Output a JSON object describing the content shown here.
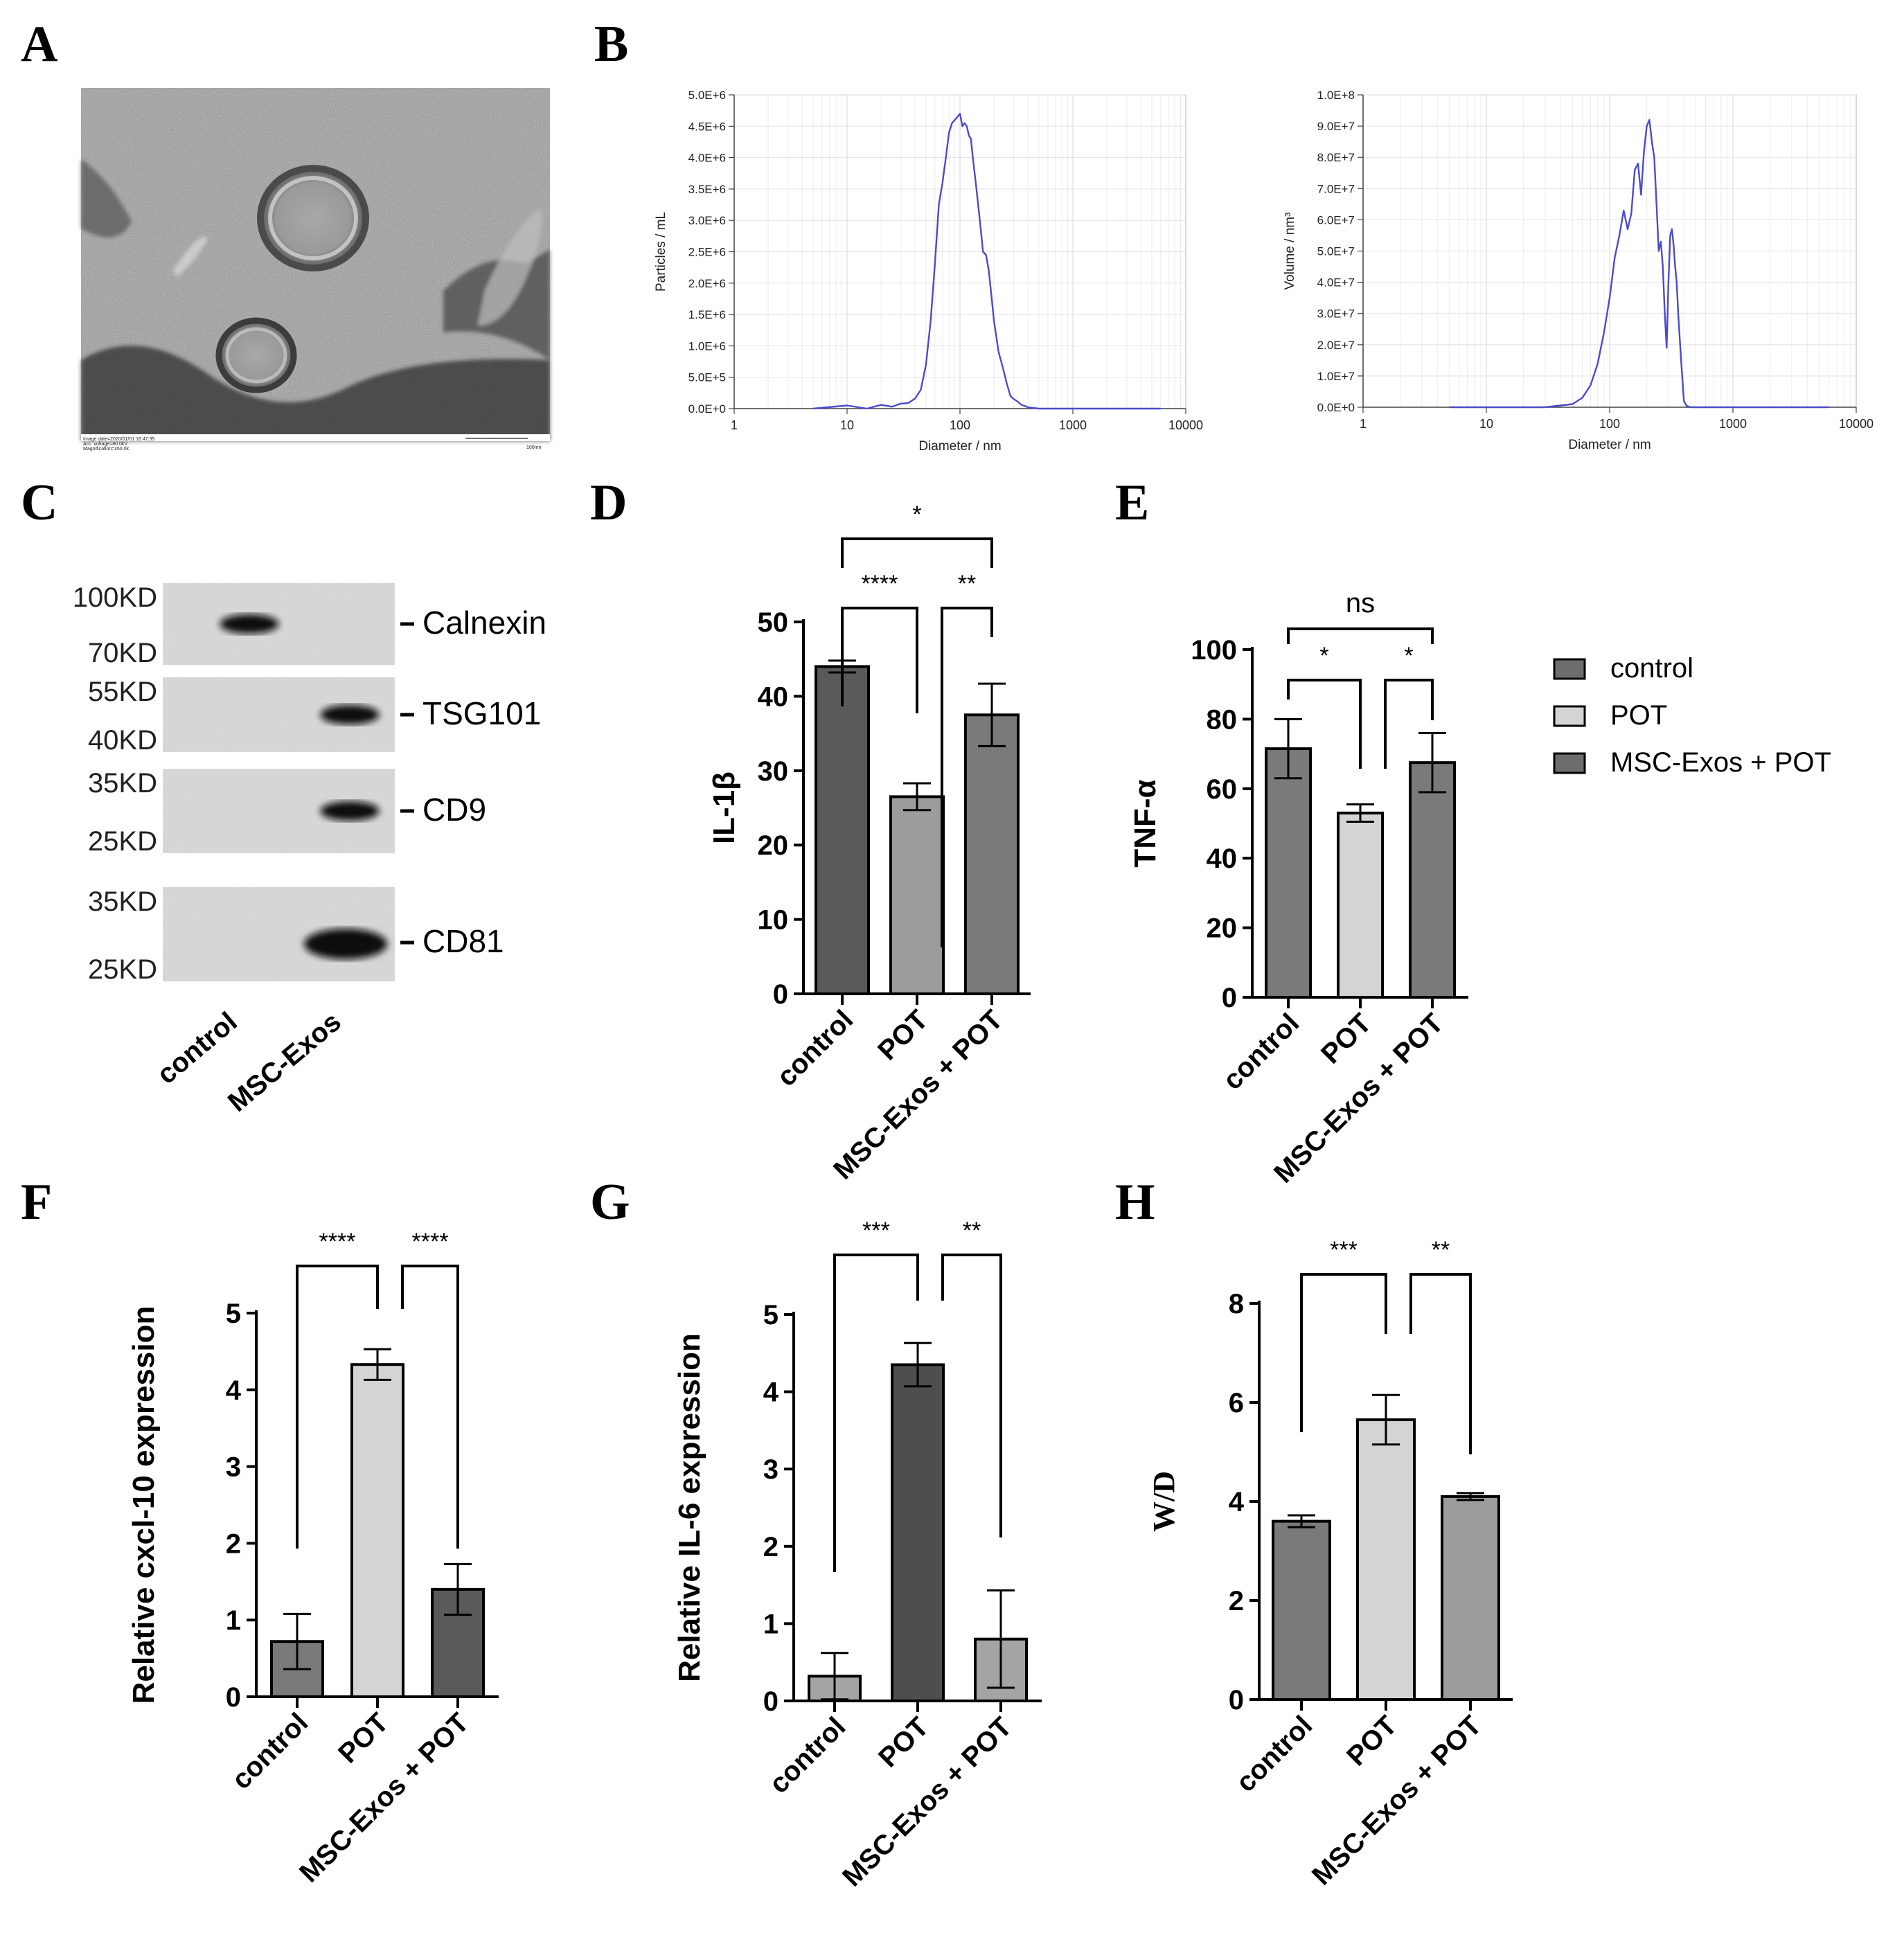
{
  "panels": {
    "A": {
      "letter": "A",
      "tem_caption_lines": [
        "Image date=2020/01/01 16:47:35",
        "Acc. voltage=80.0kV",
        "Magnification=x50.0k"
      ],
      "scale_label": "100nm"
    },
    "B": {
      "letter": "B"
    },
    "C": {
      "letter": "C",
      "blots": [
        {
          "protein": "Calnexin",
          "marker_top": "100KD",
          "marker_bottom": "70KD",
          "band_lane": 0
        },
        {
          "protein": "TSG101",
          "marker_top": "55KD",
          "marker_bottom": "40KD",
          "band_lane": 1
        },
        {
          "protein": "CD9",
          "marker_top": "35KD",
          "marker_bottom": "25KD",
          "band_lane": 1
        },
        {
          "protein": "CD81",
          "marker_top": "35KD",
          "marker_bottom": "25KD",
          "band_lane": 1
        }
      ],
      "lanes": [
        "control",
        "MSC-Exos"
      ]
    },
    "D": {
      "letter": "D"
    },
    "E": {
      "letter": "E"
    },
    "F": {
      "letter": "F"
    },
    "G": {
      "letter": "G"
    },
    "H": {
      "letter": "H"
    }
  },
  "legend": {
    "entries": [
      {
        "label": "control",
        "color": "#6d6d6d"
      },
      {
        "label": "POT",
        "color": "#d4d4d4"
      },
      {
        "label": "MSC-Exos + POT",
        "color": "#6d6d6d"
      }
    ]
  },
  "chart_data": [
    {
      "id": "B-particles",
      "type": "line",
      "xlabel": "Diameter / nm",
      "ylabel": "Particles / mL",
      "xscale": "log",
      "xlim": [
        1,
        10000
      ],
      "ylim": [
        0,
        5000000
      ],
      "x_ticks": [
        "1",
        "10",
        "100",
        "1000",
        "10000"
      ],
      "y_ticks": [
        "0.0E+0",
        "5.0E+5",
        "1.0E+6",
        "1.5E+6",
        "2.0E+6",
        "2.5E+6",
        "3.0E+6",
        "3.5E+6",
        "4.0E+6",
        "4.5E+6",
        "5.0E+6"
      ],
      "color": "#4b4bcc",
      "grid": true,
      "x": [
        5,
        10,
        15,
        20,
        25,
        30,
        35,
        40,
        45,
        50,
        55,
        60,
        65,
        70,
        75,
        80,
        85,
        90,
        95,
        100,
        105,
        110,
        115,
        120,
        125,
        130,
        140,
        150,
        160,
        170,
        180,
        190,
        200,
        220,
        240,
        260,
        280,
        300,
        320,
        350,
        380,
        400,
        450,
        500,
        1000,
        6000
      ],
      "y": [
        0,
        50000,
        0,
        60000,
        30000,
        80000,
        90000,
        160000,
        300000,
        700000,
        1400000,
        2300000,
        3250000,
        3600000,
        4000000,
        4400000,
        4550000,
        4600000,
        4650000,
        4700000,
        4500000,
        4550000,
        4500000,
        4350000,
        4300000,
        4000000,
        3500000,
        3000000,
        2500000,
        2450000,
        2200000,
        1800000,
        1400000,
        900000,
        650000,
        400000,
        200000,
        150000,
        120000,
        60000,
        40000,
        20000,
        10000,
        0,
        0,
        0
      ]
    },
    {
      "id": "B-volume",
      "type": "line",
      "xlabel": "Diameter / nm",
      "ylabel": "Volume / nm³",
      "xscale": "log",
      "xlim": [
        1,
        10000
      ],
      "ylim": [
        0,
        100000000
      ],
      "x_ticks": [
        "1",
        "10",
        "100",
        "1000",
        "10000"
      ],
      "y_ticks": [
        "0.0E+0",
        "1.0E+7",
        "2.0E+7",
        "3.0E+7",
        "4.0E+7",
        "5.0E+7",
        "6.0E+7",
        "7.0E+7",
        "8.0E+7",
        "9.0E+7",
        "1.0E+8"
      ],
      "color": "#4b4bcc",
      "grid": true,
      "x": [
        5,
        30,
        50,
        60,
        70,
        80,
        90,
        100,
        110,
        120,
        130,
        140,
        150,
        160,
        170,
        180,
        190,
        200,
        210,
        220,
        230,
        240,
        250,
        260,
        270,
        280,
        290,
        300,
        310,
        320,
        330,
        340,
        350,
        360,
        380,
        400,
        420,
        450,
        500,
        1000,
        6000
      ],
      "y": [
        0,
        0,
        1000000,
        3000000,
        7000000,
        14000000,
        24000000,
        35000000,
        48000000,
        55000000,
        63000000,
        57000000,
        62000000,
        76000000,
        78000000,
        68000000,
        82000000,
        90000000,
        92000000,
        85000000,
        80000000,
        65000000,
        50000000,
        53000000,
        45000000,
        30000000,
        19000000,
        40000000,
        55000000,
        57000000,
        52000000,
        45000000,
        40000000,
        30000000,
        15000000,
        2000000,
        500000,
        0,
        0,
        0,
        0
      ]
    },
    {
      "id": "D",
      "type": "bar",
      "categories": [
        "control",
        "POT",
        "MSC-Exos + POT"
      ],
      "values": [
        44,
        26.5,
        37.5
      ],
      "errors": [
        0.8,
        1.8,
        4.2
      ],
      "colors": [
        "#5a5a5a",
        "#9c9c9e",
        "#7a7a7a"
      ],
      "ylabel": "IL-1β",
      "ylim": [
        0,
        50
      ],
      "y_ticks": [
        "0",
        "10",
        "20",
        "30",
        "40",
        "50"
      ],
      "y_tick_values": [
        0,
        10,
        20,
        30,
        40,
        50
      ],
      "significance": [
        {
          "from": 0,
          "to": 1,
          "label": "****",
          "level": 1
        },
        {
          "from": 1,
          "to": 2,
          "label": "**",
          "level": 1
        },
        {
          "from": 0,
          "to": 2,
          "label": "*",
          "level": 2
        }
      ]
    },
    {
      "id": "E",
      "type": "bar",
      "categories": [
        "control",
        "POT",
        "MSC-Exos + POT"
      ],
      "values": [
        71.5,
        53,
        67.5
      ],
      "errors": [
        8.5,
        2.5,
        8.5
      ],
      "colors": [
        "#7a7a7a",
        "#d4d4d4",
        "#7a7a7a"
      ],
      "ylabel": "TNF-α",
      "ylim": [
        0,
        100
      ],
      "y_ticks": [
        "0",
        "20",
        "40",
        "60",
        "80",
        "100"
      ],
      "y_tick_values": [
        0,
        20,
        40,
        60,
        80,
        100
      ],
      "significance": [
        {
          "from": 0,
          "to": 1,
          "label": "*",
          "level": 1
        },
        {
          "from": 1,
          "to": 2,
          "label": "*",
          "level": 1
        },
        {
          "from": 0,
          "to": 2,
          "label": "ns",
          "level": 2
        }
      ]
    },
    {
      "id": "F",
      "type": "bar",
      "categories": [
        "control",
        "POT",
        "MSC-Exos + POT"
      ],
      "values": [
        0.72,
        4.33,
        1.4
      ],
      "errors": [
        0.36,
        0.2,
        0.33
      ],
      "colors": [
        "#7a7a7a",
        "#d4d4d4",
        "#5a5a5a"
      ],
      "ylabel": "Relative  cxcl-10 expression",
      "ylim": [
        0,
        5
      ],
      "y_ticks": [
        "0",
        "1",
        "2",
        "3",
        "4",
        "5"
      ],
      "y_tick_values": [
        0,
        1,
        2,
        3,
        4,
        5
      ],
      "significance": [
        {
          "from": 0,
          "to": 1,
          "label": "****",
          "level": 1
        },
        {
          "from": 1,
          "to": 2,
          "label": "****",
          "level": 1
        }
      ]
    },
    {
      "id": "G",
      "type": "bar",
      "categories": [
        "control",
        "POT",
        "MSC-Exos + POT"
      ],
      "values": [
        0.32,
        4.35,
        0.8
      ],
      "errors": [
        0.3,
        0.28,
        0.63
      ],
      "colors": [
        "#a4a4a4",
        "#4e4e4e",
        "#a4a4a4"
      ],
      "ylabel": "Relative IL-6 expression",
      "ylim": [
        0,
        5
      ],
      "y_ticks": [
        "0",
        "1",
        "2",
        "3",
        "4",
        "5"
      ],
      "y_tick_values": [
        0,
        1,
        2,
        3,
        4,
        5
      ],
      "significance": [
        {
          "from": 0,
          "to": 1,
          "label": "***",
          "level": 1
        },
        {
          "from": 1,
          "to": 2,
          "label": "**",
          "level": 1
        }
      ]
    },
    {
      "id": "H",
      "type": "bar",
      "categories": [
        "control",
        "POT",
        "MSC-Exos + POT"
      ],
      "values": [
        3.6,
        5.65,
        4.1
      ],
      "errors": [
        0.12,
        0.5,
        0.07
      ],
      "colors": [
        "#7a7a7a",
        "#d4d4d4",
        "#9c9c9e"
      ],
      "ylabel": "W/D",
      "ylim": [
        0,
        8
      ],
      "y_ticks": [
        "0",
        "2",
        "4",
        "6",
        "8"
      ],
      "y_tick_values": [
        0,
        2,
        4,
        6,
        8
      ],
      "significance": [
        {
          "from": 0,
          "to": 1,
          "label": "***",
          "level": 1
        },
        {
          "from": 1,
          "to": 2,
          "label": "**",
          "level": 1
        }
      ]
    }
  ]
}
